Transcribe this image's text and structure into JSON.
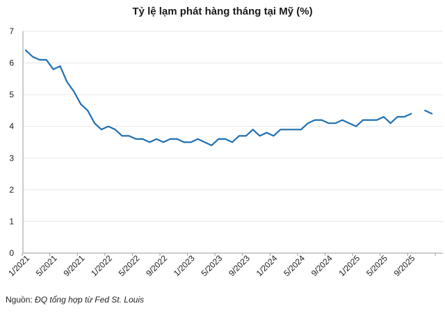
{
  "chart_data": {
    "type": "line",
    "title": "Tỷ lệ lạm phát hàng tháng tại Mỹ (%)",
    "xlabel": "",
    "ylabel": "",
    "ylim": [
      0,
      7
    ],
    "yticks": [
      "0",
      "1",
      "2",
      "3",
      "4",
      "5",
      "6",
      "7"
    ],
    "grid": true,
    "legend": "none",
    "x_tick_labels": [
      "1/2021",
      "5/2021",
      "9/2021",
      "1/2022",
      "5/2022",
      "9/2022",
      "1/2023",
      "5/2023",
      "9/2023",
      "1/2024",
      "5/2024",
      "9/2024",
      "1/2025",
      "5/2025",
      "9/2025"
    ],
    "x": [
      "1/2021",
      "2/2021",
      "3/2021",
      "4/2021",
      "5/2021",
      "6/2021",
      "7/2021",
      "8/2021",
      "9/2021",
      "10/2021",
      "11/2021",
      "12/2021",
      "1/2022",
      "2/2022",
      "3/2022",
      "4/2022",
      "5/2022",
      "6/2022",
      "7/2022",
      "8/2022",
      "9/2022",
      "10/2022",
      "11/2022",
      "12/2022",
      "1/2023",
      "2/2023",
      "3/2023",
      "4/2023",
      "5/2023",
      "6/2023",
      "7/2023",
      "8/2023",
      "9/2023",
      "10/2023",
      "11/2023",
      "12/2023",
      "1/2024",
      "2/2024",
      "3/2024",
      "4/2024",
      "5/2024",
      "6/2024",
      "7/2024",
      "8/2024",
      "9/2024",
      "10/2024",
      "11/2024",
      "12/2024",
      "1/2025",
      "2/2025",
      "3/2025",
      "4/2025",
      "5/2025",
      "6/2025",
      "7/2025",
      "8/2025",
      "9/2025",
      "10/2025",
      "11/2025",
      "12/2025"
    ],
    "series": [
      {
        "values": [
          6.4,
          6.2,
          6.1,
          6.1,
          5.8,
          5.9,
          5.4,
          5.1,
          4.7,
          4.5,
          4.1,
          3.9,
          4.0,
          3.9,
          3.7,
          3.7,
          3.6,
          3.6,
          3.5,
          3.6,
          3.5,
          3.6,
          3.6,
          3.5,
          3.5,
          3.6,
          3.5,
          3.4,
          3.6,
          3.6,
          3.5,
          3.7,
          3.7,
          3.9,
          3.7,
          3.8,
          3.7,
          3.9,
          3.9,
          3.9,
          3.9,
          4.1,
          4.2,
          4.2,
          4.1,
          4.1,
          4.2,
          4.1,
          4.0,
          4.2,
          4.2,
          4.2,
          4.3,
          4.1,
          4.3,
          4.3,
          4.4,
          null,
          4.5,
          4.4
        ],
        "color": "#1f6fb2"
      }
    ],
    "colors": {
      "line": "#1f6fb2",
      "grid": "#e6e6e6",
      "axis": "#9a9a9a",
      "text": "#1a1a1a"
    }
  },
  "source": {
    "label": "Nguồn:",
    "text": "ĐQ tổng hợp từ Fed St. Louis"
  }
}
